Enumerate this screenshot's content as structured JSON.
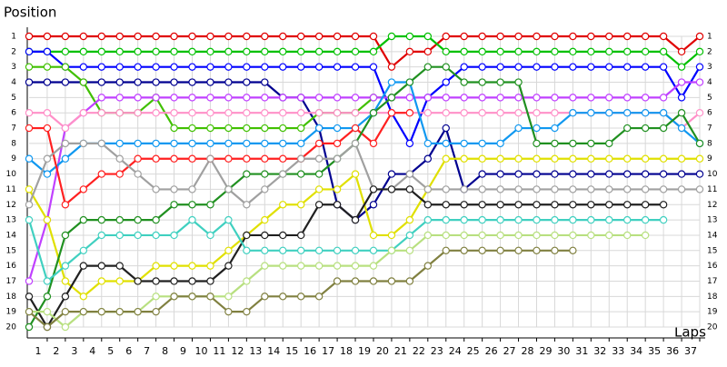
{
  "chart_data": {
    "type": "lapchart",
    "title": "Position",
    "x_label": "Laps",
    "xlim": [
      0,
      37
    ],
    "ylim": [
      1,
      20
    ],
    "inverted_y": true,
    "grid": true,
    "xticks": [
      1,
      2,
      3,
      4,
      5,
      6,
      7,
      8,
      9,
      10,
      11,
      12,
      13,
      14,
      15,
      16,
      17,
      18,
      19,
      20,
      21,
      22,
      23,
      24,
      25,
      26,
      27,
      28,
      29,
      30,
      31,
      32,
      33,
      34,
      35,
      36,
      37
    ],
    "yticks": [
      1,
      2,
      3,
      4,
      5,
      6,
      7,
      8,
      9,
      10,
      11,
      12,
      13,
      14,
      15,
      16,
      17,
      18,
      19,
      20
    ],
    "x": [
      0,
      1,
      2,
      3,
      4,
      5,
      6,
      7,
      8,
      9,
      10,
      11,
      12,
      13,
      14,
      15,
      16,
      17,
      18,
      19,
      20,
      21,
      22,
      23,
      24,
      25,
      26,
      27,
      28,
      29,
      30,
      31,
      32,
      33,
      34,
      35,
      36,
      37
    ],
    "series": [
      {
        "color": "#e00000",
        "values": [
          1,
          1,
          1,
          1,
          1,
          1,
          1,
          1,
          1,
          1,
          1,
          1,
          1,
          1,
          1,
          1,
          1,
          1,
          1,
          1,
          3,
          2,
          2,
          1,
          1,
          1,
          1,
          1,
          1,
          1,
          1,
          1,
          1,
          1,
          1,
          1,
          2,
          1
        ]
      },
      {
        "color": "#00c000",
        "values": [
          2,
          2,
          2,
          2,
          2,
          2,
          2,
          2,
          2,
          2,
          2,
          2,
          2,
          2,
          2,
          2,
          2,
          2,
          2,
          2,
          1,
          1,
          1,
          2,
          2,
          2,
          2,
          2,
          2,
          2,
          2,
          2,
          2,
          2,
          2,
          2,
          3,
          2
        ]
      },
      {
        "color": "#0000ff",
        "values": [
          2,
          2,
          3,
          3,
          3,
          3,
          3,
          3,
          3,
          3,
          3,
          3,
          3,
          3,
          3,
          3,
          3,
          3,
          3,
          3,
          6,
          8,
          5,
          4,
          3,
          3,
          3,
          3,
          3,
          3,
          3,
          3,
          3,
          3,
          3,
          3,
          5,
          3
        ]
      },
      {
        "color": "#000090",
        "values": [
          4,
          4,
          4,
          4,
          4,
          4,
          4,
          4,
          4,
          4,
          4,
          4,
          4,
          4,
          5,
          5,
          7,
          12,
          13,
          12,
          10,
          10,
          9,
          7,
          11,
          10,
          10,
          10,
          10,
          10,
          10,
          10,
          10,
          10,
          10,
          10,
          10,
          10
        ]
      },
      {
        "color": "#40c000",
        "values": [
          3,
          3,
          3,
          4,
          6,
          6,
          6,
          5,
          7,
          7,
          7,
          7,
          7,
          7,
          7,
          7,
          6,
          6,
          6,
          5,
          5,
          null,
          null,
          null,
          null,
          null,
          null,
          null,
          null,
          null,
          null,
          null,
          null,
          null,
          null,
          null,
          null,
          null
        ]
      },
      {
        "color": "#c040ff",
        "values": [
          17,
          13,
          7,
          6,
          5,
          5,
          5,
          5,
          5,
          5,
          5,
          5,
          5,
          5,
          5,
          5,
          5,
          5,
          5,
          5,
          5,
          5,
          5,
          5,
          5,
          5,
          5,
          5,
          5,
          5,
          5,
          5,
          5,
          5,
          5,
          5,
          4,
          4
        ]
      },
      {
        "color": "#ff90c8",
        "values": [
          6,
          6,
          7,
          6,
          6,
          6,
          6,
          6,
          6,
          6,
          6,
          6,
          6,
          6,
          6,
          6,
          6,
          6,
          6,
          6,
          6,
          6,
          6,
          6,
          6,
          6,
          6,
          6,
          6,
          6,
          6,
          6,
          6,
          6,
          6,
          6,
          7,
          6
        ]
      },
      {
        "color": "#1098f0",
        "values": [
          9,
          10,
          9,
          8,
          8,
          8,
          8,
          8,
          8,
          8,
          8,
          8,
          8,
          8,
          8,
          8,
          7,
          7,
          7,
          6,
          4,
          4,
          8,
          8,
          8,
          8,
          8,
          7,
          7,
          7,
          6,
          6,
          6,
          6,
          6,
          6,
          7,
          8
        ]
      },
      {
        "color": "#ff2020",
        "values": [
          7,
          7,
          12,
          11,
          10,
          10,
          9,
          9,
          9,
          9,
          9,
          9,
          9,
          9,
          9,
          9,
          8,
          8,
          7,
          8,
          6,
          6,
          null,
          null,
          null,
          null,
          null,
          null,
          null,
          null,
          null,
          null,
          null,
          null,
          null,
          null,
          null,
          null
        ]
      },
      {
        "color": "#e0e000",
        "values": [
          11,
          13,
          17,
          18,
          17,
          17,
          17,
          16,
          16,
          16,
          16,
          15,
          14,
          13,
          12,
          12,
          11,
          11,
          10,
          14,
          14,
          13,
          11,
          9,
          9,
          9,
          9,
          9,
          9,
          9,
          9,
          9,
          9,
          9,
          9,
          9,
          9,
          9
        ]
      },
      {
        "color": "#209020",
        "values": [
          20,
          18,
          14,
          13,
          13,
          13,
          13,
          13,
          12,
          12,
          12,
          11,
          10,
          10,
          10,
          10,
          10,
          9,
          8,
          6,
          5,
          4,
          3,
          3,
          4,
          4,
          4,
          4,
          8,
          8,
          8,
          8,
          8,
          7,
          7,
          7,
          6,
          8
        ]
      },
      {
        "color": "#a0a0a0",
        "values": [
          12,
          9,
          8,
          8,
          8,
          9,
          10,
          11,
          11,
          11,
          9,
          11,
          12,
          11,
          10,
          9,
          9,
          9,
          8,
          11,
          11,
          10,
          11,
          11,
          11,
          11,
          11,
          11,
          11,
          11,
          11,
          11,
          11,
          11,
          11,
          11,
          11,
          11
        ]
      },
      {
        "color": "#202020",
        "values": [
          18,
          20,
          18,
          16,
          16,
          16,
          17,
          17,
          17,
          17,
          17,
          16,
          14,
          14,
          14,
          14,
          12,
          12,
          13,
          11,
          11,
          11,
          12,
          12,
          12,
          12,
          12,
          12,
          12,
          12,
          12,
          12,
          12,
          12,
          12,
          12,
          null,
          null
        ]
      },
      {
        "color": "#40d0c0",
        "values": [
          13,
          17,
          16,
          15,
          14,
          14,
          14,
          14,
          14,
          13,
          14,
          13,
          15,
          15,
          15,
          15,
          15,
          15,
          15,
          15,
          15,
          14,
          13,
          13,
          13,
          13,
          13,
          13,
          13,
          13,
          13,
          13,
          13,
          13,
          13,
          13,
          null,
          null
        ]
      },
      {
        "color": "#b8e080",
        "values": [
          19,
          19,
          20,
          19,
          19,
          19,
          19,
          18,
          18,
          18,
          18,
          18,
          17,
          16,
          16,
          16,
          16,
          16,
          16,
          16,
          15,
          15,
          14,
          14,
          14,
          14,
          14,
          14,
          14,
          14,
          14,
          14,
          14,
          14,
          14,
          null,
          null,
          null
        ]
      },
      {
        "color": "#808040",
        "values": [
          19,
          20,
          19,
          19,
          19,
          19,
          19,
          19,
          18,
          18,
          18,
          19,
          19,
          18,
          18,
          18,
          18,
          17,
          17,
          17,
          17,
          17,
          16,
          15,
          15,
          15,
          15,
          15,
          15,
          15,
          15,
          null,
          null,
          null,
          null,
          null,
          null,
          null
        ]
      }
    ]
  }
}
